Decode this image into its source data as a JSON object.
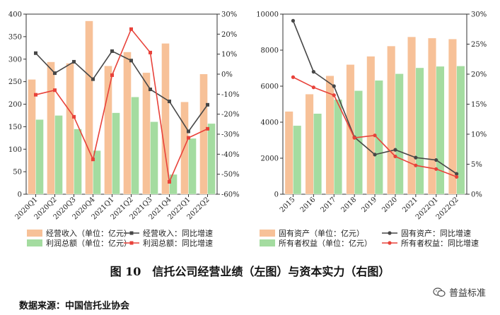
{
  "chart_data": [
    {
      "type": "bar",
      "categories": [
        "2020Q1",
        "2020Q2",
        "2020Q3",
        "2020Q4",
        "2021Q1",
        "2021Q2",
        "2021Q3",
        "2021Q4",
        "2022Q1",
        "2022Q2"
      ],
      "ylim": [
        0,
        400
      ],
      "y2lim": [
        -60,
        30
      ],
      "yticks": [
        "0",
        "50",
        "100",
        "150",
        "200",
        "250",
        "300",
        "350",
        "400"
      ],
      "y2ticks": [
        "-60%",
        "-50%",
        "-40%",
        "-30%",
        "-20%",
        "-10%",
        "0%",
        "10%",
        "20%",
        "30%"
      ],
      "series": [
        {
          "name": "经营收入（单位：亿元）",
          "kind": "bar",
          "color": "#f7c198",
          "values": [
            255,
            294,
            291,
            385,
            285,
            316,
            270,
            335,
            205,
            267
          ]
        },
        {
          "name": "利润总额（单位：亿元）",
          "kind": "bar",
          "color": "#a4dca0",
          "values": [
            166,
            175,
            145,
            97,
            181,
            216,
            161,
            44,
            124,
            157
          ]
        },
        {
          "name": "经营收入：同比增速",
          "kind": "line",
          "axis": "right",
          "color": "#474747",
          "values": [
            10.5,
            0.5,
            6.2,
            -2.5,
            11.5,
            6.8,
            -7.6,
            -13.6,
            -28.6,
            -15.3
          ]
        },
        {
          "name": "利润总额：同比增速",
          "kind": "line",
          "axis": "right",
          "color": "#e8423a",
          "values": [
            -10.3,
            -8.0,
            -21.3,
            -42.6,
            -0.5,
            22.5,
            10.8,
            -53.8,
            -31.8,
            -27.3
          ]
        }
      ]
    },
    {
      "type": "bar",
      "categories": [
        "2015",
        "2016",
        "2017",
        "2018",
        "2019",
        "2020",
        "2021",
        "2022Q1",
        "2022Q2"
      ],
      "ylim": [
        0,
        10000
      ],
      "y2lim": [
        0,
        30
      ],
      "yticks": [
        "0",
        "2000",
        "4000",
        "6000",
        "8000",
        "10000"
      ],
      "y2ticks": [
        "0%",
        "5%",
        "10%",
        "15%",
        "20%",
        "25%",
        "30%"
      ],
      "series": [
        {
          "name": "固有资产（单位：亿元）",
          "kind": "bar",
          "color": "#f7c198",
          "values": [
            4600,
            5560,
            6580,
            7200,
            7660,
            8230,
            8740,
            8670,
            8620
          ]
        },
        {
          "name": "所有者权益（单位：亿元）",
          "kind": "bar",
          "color": "#a4dca0",
          "values": [
            3810,
            4480,
            5260,
            5750,
            6320,
            6690,
            7020,
            7100,
            7120
          ]
        },
        {
          "name": "固有资产：同比增速",
          "kind": "line",
          "axis": "right",
          "color": "#474747",
          "values": [
            28.9,
            20.4,
            18.0,
            9.5,
            6.6,
            7.4,
            6.1,
            5.7,
            3.4
          ]
        },
        {
          "name": "所有者权益：同比增速",
          "kind": "line",
          "axis": "right",
          "color": "#e8423a",
          "values": [
            19.5,
            17.8,
            16.5,
            9.4,
            9.8,
            6.3,
            4.8,
            4.2,
            2.9
          ]
        }
      ]
    }
  ],
  "caption": "图 10　信托公司经营业绩（左图）与资本实力（右图）",
  "source": "数据来源：中国信托业协会",
  "watermark": "普益标准"
}
